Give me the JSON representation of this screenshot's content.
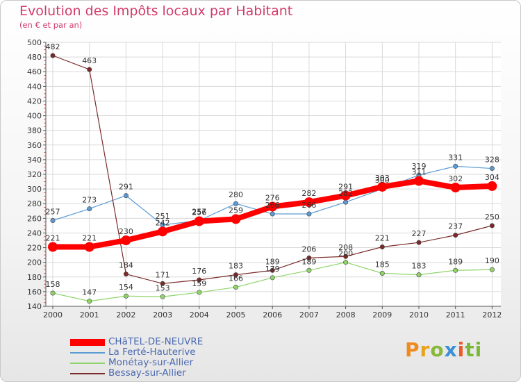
{
  "chart_data": {
    "type": "line",
    "title": "Evolution des Impôts locaux par Habitant",
    "subtitle": "(en € et par an)",
    "x": [
      2000,
      2001,
      2002,
      2003,
      2004,
      2005,
      2006,
      2007,
      2008,
      2009,
      2010,
      2011,
      2012
    ],
    "ylim": [
      140,
      500
    ],
    "ytick_step": 20,
    "grid": true,
    "series": [
      {
        "name": "CHâTEL-DE-NEUVRE",
        "color": "#ff0000",
        "values": [
          221,
          221,
          230,
          242,
          256,
          259,
          276,
          282,
          291,
          303,
          311,
          302,
          304
        ],
        "labels": [
          "221",
          "221",
          "230",
          "242",
          "256",
          "259",
          "276",
          "282",
          "291",
          "303",
          "311",
          "302",
          "304"
        ]
      },
      {
        "name": "La Ferté-Hauterive",
        "color": "#5b9bd5",
        "values": [
          257,
          273,
          291,
          251,
          257,
          280,
          266,
          266,
          282,
          300,
          319,
          331,
          328
        ],
        "labels": [
          "257",
          "273",
          "291",
          "251",
          "257",
          "280",
          "266",
          "266",
          "282",
          "300",
          "319",
          "331",
          "328"
        ]
      },
      {
        "name": "Monétay-sur-Allier",
        "color": "#8fd46a",
        "values": [
          158,
          147,
          154,
          153,
          159,
          166,
          179,
          189,
          200,
          185,
          183,
          189,
          190
        ],
        "labels": [
          "158",
          "147",
          "154",
          "153",
          "159",
          "166",
          "179",
          "189",
          "200",
          "185",
          "183",
          "189",
          "190"
        ]
      },
      {
        "name": "Bessay-sur-Allier",
        "color": "#7a2a2a",
        "values": [
          482,
          463,
          184,
          171,
          176,
          183,
          189,
          206,
          208,
          221,
          227,
          237,
          250
        ],
        "labels": [
          "482",
          "463",
          "184",
          "171",
          "176",
          "183",
          "189",
          "206",
          "208",
          "221",
          "227",
          "237",
          "250"
        ]
      }
    ]
  },
  "legend": {
    "items": [
      {
        "label": "CHâTEL-DE-NEUVRE",
        "color": "#ff0000"
      },
      {
        "label": "La Ferté-Hauterive",
        "color": "#5b9bd5"
      },
      {
        "label": "Monétay-sur-Allier",
        "color": "#8fd46a"
      },
      {
        "label": "Bessay-sur-Allier",
        "color": "#7a2a2a"
      }
    ]
  },
  "logo": {
    "letters": [
      "P",
      "r",
      "o",
      "x",
      "i",
      "ti"
    ]
  }
}
